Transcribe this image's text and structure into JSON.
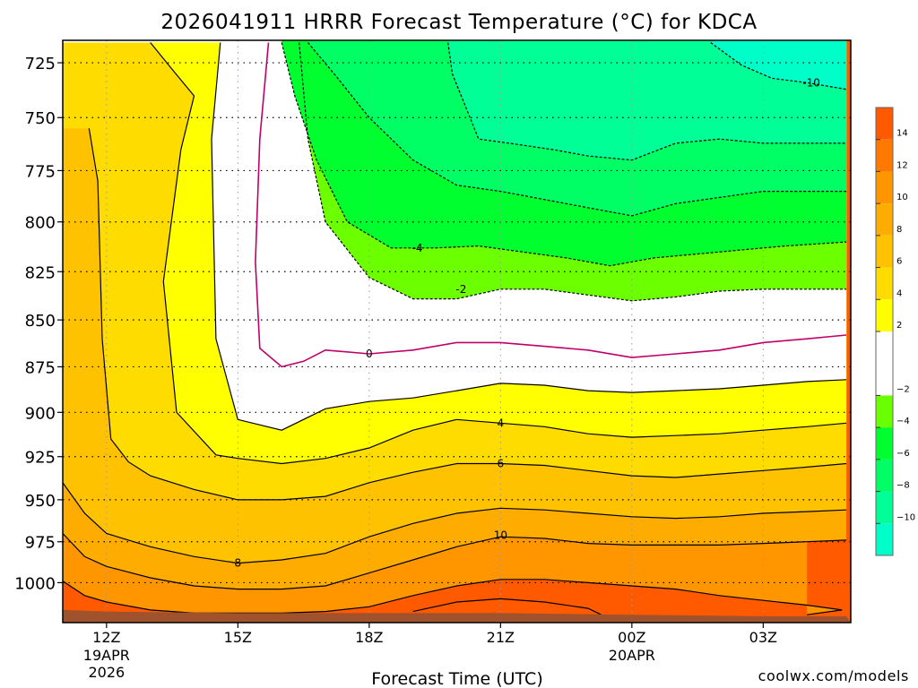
{
  "chart_data": {
    "type": "heatmap",
    "title": "2026041911 HRRR Forecast Temperature (°C) for KDCA",
    "xlabel": "Forecast Time (UTC)",
    "ylabel": "",
    "credit": "coolwx.com/models",
    "y_scale": "log-pressure",
    "y_inverted": true,
    "ylim": [
      1025,
      715
    ],
    "xlim": [
      11,
      29
    ],
    "grid": true,
    "x_ticks": [
      {
        "x": 12,
        "label": "12Z",
        "sub1": "19APR",
        "sub2": "2026"
      },
      {
        "x": 15,
        "label": "15Z",
        "sub1": "",
        "sub2": ""
      },
      {
        "x": 18,
        "label": "18Z",
        "sub1": "",
        "sub2": ""
      },
      {
        "x": 21,
        "label": "21Z",
        "sub1": "",
        "sub2": ""
      },
      {
        "x": 24,
        "label": "00Z",
        "sub1": "20APR",
        "sub2": ""
      },
      {
        "x": 27,
        "label": "03Z",
        "sub1": "",
        "sub2": ""
      }
    ],
    "y_ticks": [
      {
        "p": 725,
        "label": "725"
      },
      {
        "p": 750,
        "label": "750"
      },
      {
        "p": 775,
        "label": "775"
      },
      {
        "p": 800,
        "label": "800"
      },
      {
        "p": 825,
        "label": "825"
      },
      {
        "p": 850,
        "label": "850"
      },
      {
        "p": 875,
        "label": "875"
      },
      {
        "p": 900,
        "label": "900"
      },
      {
        "p": 925,
        "label": "925"
      },
      {
        "p": 950,
        "label": "950"
      },
      {
        "p": 975,
        "label": "975"
      },
      {
        "p": 1000,
        "label": "1000"
      }
    ],
    "contour_labels": [
      {
        "text": "-10",
        "x": 28.1,
        "p": 734
      },
      {
        "text": "-4",
        "x": 19.1,
        "p": 813
      },
      {
        "text": "-2",
        "x": 20.1,
        "p": 834
      },
      {
        "text": "0",
        "x": 18.0,
        "p": 868
      },
      {
        "text": "4",
        "x": 21.0,
        "p": 906
      },
      {
        "text": "6",
        "x": 21.0,
        "p": 929
      },
      {
        "text": "10",
        "x": 21.0,
        "p": 971
      },
      {
        "text": "8",
        "x": 15.0,
        "p": 988
      }
    ],
    "contours": [
      {
        "level": -10,
        "x": [
          25.8,
          26.5,
          27.2,
          28.0,
          28.9
        ],
        "p": [
          716,
          726,
          732,
          734,
          737
        ]
      },
      {
        "level": -8,
        "x": [
          19.8,
          19.9,
          20.5,
          21.2,
          22.2,
          23.0,
          24.0,
          25.0,
          26.0,
          27.0,
          28.9
        ],
        "p": [
          716,
          730,
          760,
          762,
          765,
          768,
          770,
          762,
          760,
          762,
          762
        ]
      },
      {
        "level": -6,
        "x": [
          16.6,
          17.2,
          18.0,
          19.0,
          20.0,
          21.0,
          22.0,
          23.0,
          24.0,
          25.0,
          26.0,
          27.0,
          28.9
        ],
        "p": [
          716,
          730,
          750,
          770,
          782,
          785,
          789,
          793,
          797,
          791,
          788,
          785,
          785
        ]
      },
      {
        "level": -4,
        "x": [
          16.0,
          16.3,
          16.8,
          17.5,
          18.5,
          19.5,
          20.5,
          21.5,
          22.5,
          23.5,
          24.5,
          25.5,
          26.5,
          27.5,
          28.9
        ],
        "p": [
          716,
          740,
          770,
          800,
          813,
          813,
          812,
          815,
          818,
          822,
          818,
          816,
          814,
          812,
          810
        ]
      },
      {
        "level": -2,
        "x": [
          16.4,
          16.6,
          17.0,
          18.0,
          19.0,
          20.0,
          21.0,
          22.0,
          23.0,
          24.0,
          25.0,
          26.0,
          27.0,
          28.0,
          28.9
        ],
        "p": [
          716,
          760,
          800,
          828,
          839,
          839,
          834,
          834,
          837,
          840,
          838,
          835,
          834,
          834,
          834
        ]
      },
      {
        "level": 0,
        "x": [
          15.7,
          15.5,
          15.4,
          15.5,
          16.0,
          16.5,
          17.0,
          18.0,
          19.0,
          20.0,
          21.0,
          22.0,
          23.0,
          24.0,
          25.0,
          26.0,
          27.0,
          28.0,
          28.9
        ],
        "p": [
          716,
          760,
          820,
          865,
          875,
          872,
          866,
          868,
          866,
          862,
          862,
          864,
          866,
          870,
          868,
          866,
          862,
          860,
          858
        ]
      },
      {
        "level": 2,
        "x": [
          14.6,
          14.4,
          14.5,
          15.0,
          16.0,
          17.0,
          18.0,
          19.0,
          20.0,
          21.0,
          22.0,
          23.0,
          24.0,
          25.0,
          26.0,
          27.0,
          28.0,
          28.9
        ],
        "p": [
          716,
          760,
          860,
          904,
          910,
          898,
          894,
          892,
          888,
          884,
          885,
          888,
          889,
          888,
          887,
          885,
          883,
          882
        ]
      },
      {
        "level": 4,
        "x": [
          13.0,
          13.5,
          14.0,
          13.7,
          13.3,
          13.6,
          14.5,
          15.0,
          16.0,
          17.0,
          18.0,
          19.0,
          20.0,
          21.0,
          22.0,
          23.0,
          24.0,
          25.0,
          26.0,
          27.0,
          28.0,
          28.9
        ],
        "p": [
          716,
          728,
          740,
          765,
          830,
          900,
          924,
          926,
          929,
          926,
          920,
          910,
          904,
          906,
          908,
          912,
          914,
          913,
          912,
          910,
          908,
          906
        ]
      },
      {
        "level": 6,
        "x": [
          11.6,
          11.8,
          11.9,
          12.1,
          12.5,
          13.0,
          14.0,
          15.0,
          16.0,
          17.0,
          18.0,
          19.0,
          20.0,
          21.0,
          22.0,
          23.0,
          24.0,
          25.0,
          26.0,
          27.0,
          28.0,
          28.9
        ],
        "p": [
          755,
          780,
          860,
          915,
          928,
          936,
          944,
          950,
          950,
          948,
          940,
          934,
          929,
          929,
          930,
          933,
          936,
          937,
          935,
          933,
          931,
          929
        ]
      },
      {
        "level": 8,
        "x": [
          11.0,
          11.5,
          12.0,
          13.0,
          14.0,
          15.0,
          16.0,
          17.0,
          18.0,
          19.0,
          20.0,
          21.0,
          22.0,
          23.0,
          24.0,
          25.0,
          26.0,
          27.0,
          28.0,
          28.9
        ],
        "p": [
          940,
          958,
          970,
          978,
          984,
          988,
          986,
          982,
          972,
          964,
          958,
          955,
          956,
          958,
          960,
          961,
          960,
          958,
          957,
          956
        ]
      },
      {
        "level": 10,
        "x": [
          11.0,
          11.5,
          12.0,
          13.0,
          14.0,
          15.0,
          16.0,
          17.0,
          18.0,
          19.0,
          20.0,
          21.0,
          22.0,
          23.0,
          24.0,
          25.0,
          26.0,
          27.0,
          28.0,
          28.9
        ],
        "p": [
          970,
          984,
          990,
          997,
          1002,
          1004,
          1004,
          1002,
          994,
          986,
          978,
          972,
          973,
          976,
          977,
          977,
          977,
          976,
          975,
          974
        ]
      },
      {
        "level": 12,
        "x": [
          11.0,
          11.5,
          12.0,
          13.0,
          14.0,
          15.0,
          16.0,
          17.0,
          18.0,
          19.0,
          20.0,
          21.0,
          22.0,
          23.0,
          24.0,
          25.0,
          26.0,
          27.0,
          28.0,
          28.8,
          28.0
        ],
        "p": [
          999,
          1008,
          1012,
          1017,
          1019,
          1019,
          1019,
          1018,
          1015,
          1008,
          1002,
          998,
          998,
          1000,
          1002,
          1004,
          1008,
          1011,
          1014,
          1017,
          1020
        ]
      },
      {
        "level": 14,
        "x": [
          19.0,
          20.0,
          21.0,
          22.0,
          23.0,
          23.3
        ],
        "p": [
          1018,
          1012,
          1010,
          1012,
          1016,
          1020
        ]
      }
    ],
    "ground": {
      "x": [
        11,
        12,
        15,
        18,
        21,
        24,
        27,
        28.9
      ],
      "p": [
        1017,
        1018,
        1019,
        1019,
        1019,
        1020,
        1021,
        1021
      ]
    },
    "colorbar": {
      "ticks": [
        "14",
        "12",
        "10",
        "8",
        "6",
        "4",
        "2",
        "−2",
        "−4",
        "−6",
        "−8",
        "−10"
      ],
      "bands": [
        {
          "from": 14,
          "to": 16,
          "color": "#ff5a00"
        },
        {
          "from": 12,
          "to": 14,
          "color": "#ff7800"
        },
        {
          "from": 10,
          "to": 12,
          "color": "#ff9600"
        },
        {
          "from": 8,
          "to": 10,
          "color": "#ffac00"
        },
        {
          "from": 6,
          "to": 8,
          "color": "#ffc200"
        },
        {
          "from": 4,
          "to": 6,
          "color": "#ffdc00"
        },
        {
          "from": 2,
          "to": 4,
          "color": "#ffff00"
        },
        {
          "from": -2,
          "to": 2,
          "color": "#ffffff"
        },
        {
          "from": -4,
          "to": -2,
          "color": "#6cff00"
        },
        {
          "from": -6,
          "to": -4,
          "color": "#00ff2e"
        },
        {
          "from": -8,
          "to": -6,
          "color": "#00ff64"
        },
        {
          "from": -10,
          "to": -8,
          "color": "#00ff96"
        },
        {
          "from": -12,
          "to": -10,
          "color": "#00ffc8"
        }
      ]
    },
    "colors": {
      "ground": "#a0522d",
      "zero_line": "#c0006a",
      "contour": "#000000",
      "grid": "#000000",
      "credit": "#e03030",
      "above_ground_warm": "#ff5a00"
    }
  }
}
